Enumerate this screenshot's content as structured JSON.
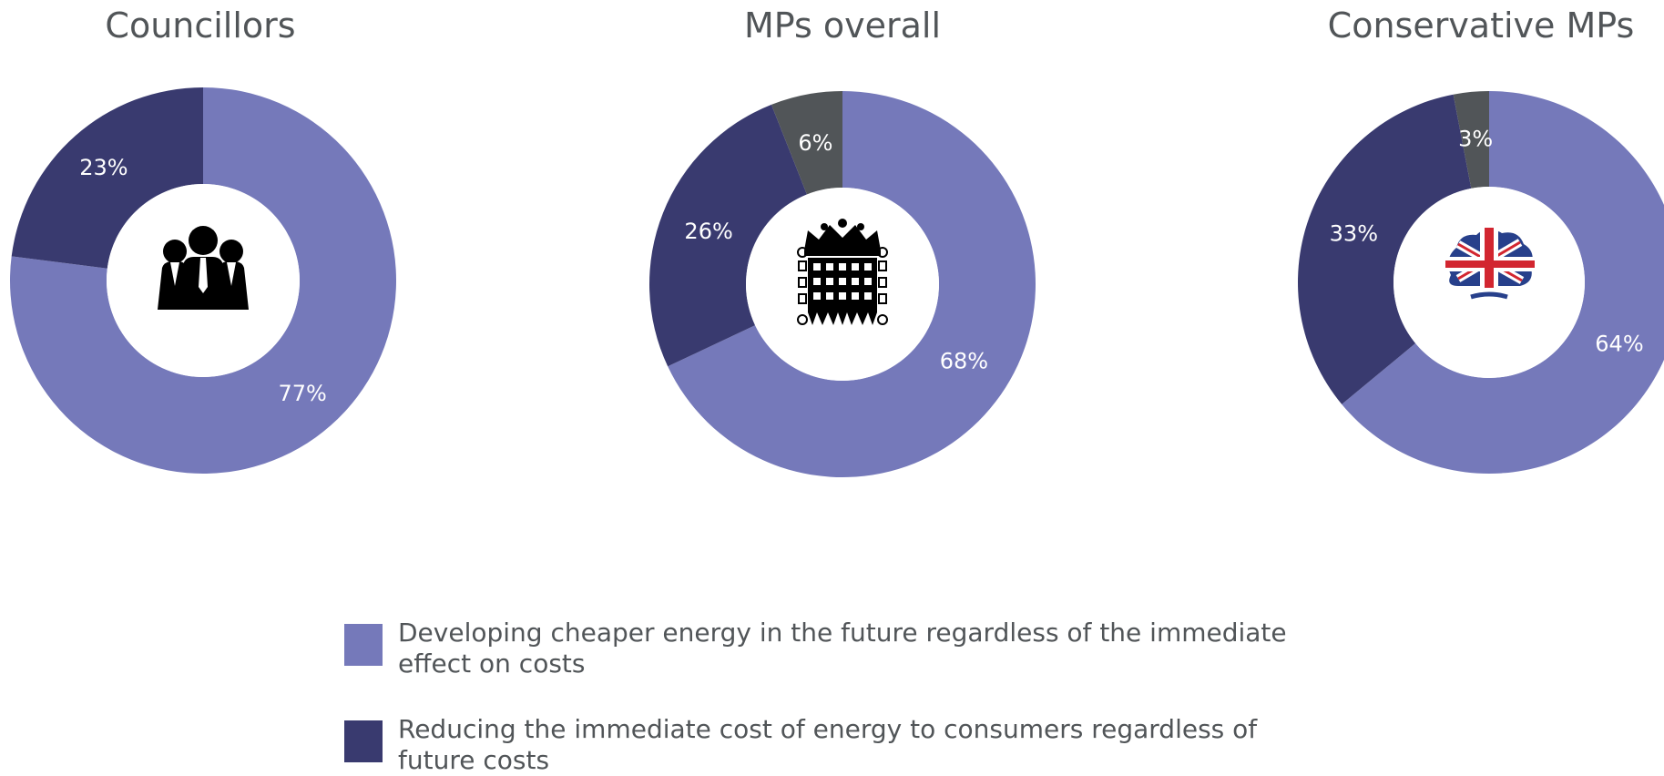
{
  "colors": {
    "developing": "#7579ba",
    "reducing": "#393a6f",
    "other": "#515558",
    "title_text": "#515558",
    "label_text": "#ffffff"
  },
  "chart_data": [
    {
      "type": "pie",
      "variant": "donut",
      "title": "Councillors",
      "center_icon": "people-icon",
      "slices": [
        {
          "key": "developing",
          "value": 77,
          "label": "77%"
        },
        {
          "key": "reducing",
          "value": 23,
          "label": "23%"
        }
      ]
    },
    {
      "type": "pie",
      "variant": "donut",
      "title": "MPs overall",
      "center_icon": "portcullis-icon",
      "slices": [
        {
          "key": "developing",
          "value": 68,
          "label": "68%"
        },
        {
          "key": "reducing",
          "value": 26,
          "label": "26%"
        },
        {
          "key": "other",
          "value": 6,
          "label": "6%"
        }
      ]
    },
    {
      "type": "pie",
      "variant": "donut",
      "title": "Conservative MPs",
      "center_icon": "conservative-tree-icon",
      "slices": [
        {
          "key": "developing",
          "value": 64,
          "label": "64%"
        },
        {
          "key": "reducing",
          "value": 33,
          "label": "33%"
        },
        {
          "key": "other",
          "value": 3,
          "label": "3%"
        }
      ]
    }
  ],
  "legend": [
    {
      "key": "developing",
      "label": "Developing cheaper energy in the future regardless of the immediate effect on costs"
    },
    {
      "key": "reducing",
      "label": "Reducing the immediate cost of energy to consumers regardless of future costs"
    }
  ]
}
